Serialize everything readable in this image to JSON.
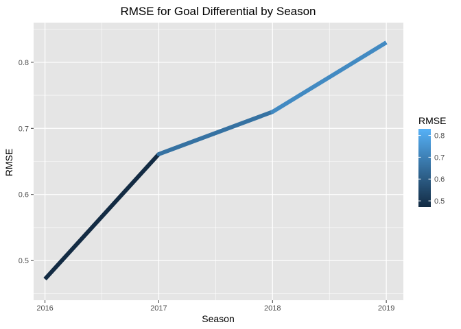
{
  "chart_data": {
    "type": "line",
    "title": "RMSE for Goal Differential by Season",
    "xlabel": "Season",
    "ylabel": "RMSE",
    "x": [
      2016,
      2017,
      2018,
      2019
    ],
    "y": [
      0.472,
      0.661,
      0.725,
      0.83
    ],
    "xlim": [
      2015.9,
      2019.15
    ],
    "ylim": [
      0.44,
      0.86
    ],
    "x_ticks": [
      {
        "value": 2016,
        "label": "2016"
      },
      {
        "value": 2017,
        "label": "2017"
      },
      {
        "value": 2018,
        "label": "2018"
      },
      {
        "value": 2019,
        "label": "2019"
      }
    ],
    "y_ticks": [
      {
        "value": 0.5,
        "label": "0.5"
      },
      {
        "value": 0.6,
        "label": "0.6"
      },
      {
        "value": 0.7,
        "label": "0.7"
      },
      {
        "value": 0.8,
        "label": "0.8"
      }
    ],
    "grid": true,
    "panel_color": "#e5e5e5",
    "grid_color": "#ffffff",
    "color_scale": {
      "low_value": 0.472,
      "high_value": 0.83,
      "low_color": "#132b43",
      "high_color": "#56b1f7"
    },
    "legend": {
      "title": "RMSE",
      "placement": "right",
      "value_range": [
        0.472,
        0.83
      ],
      "ticks": [
        {
          "value": 0.5,
          "label": "0.5"
        },
        {
          "value": 0.6,
          "label": "0.6"
        },
        {
          "value": 0.7,
          "label": "0.7"
        },
        {
          "value": 0.8,
          "label": "0.8"
        }
      ]
    }
  }
}
